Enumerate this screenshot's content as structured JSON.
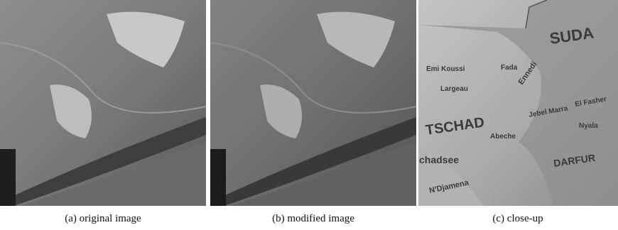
{
  "figure": {
    "panels": [
      {
        "caption": "(a) original image"
      },
      {
        "caption": "(b) modified image"
      },
      {
        "caption": "(c) close-up",
        "map_labels": [
          "SUDA",
          "Emi Koussi",
          "Fada",
          "Largeau",
          "Ennedi",
          "TSCHAD",
          "Abeche",
          "Jebel Marra",
          "El Fasher",
          "Nyala",
          "DARFUR",
          "chadsee",
          "N'Djamena"
        ]
      }
    ]
  }
}
